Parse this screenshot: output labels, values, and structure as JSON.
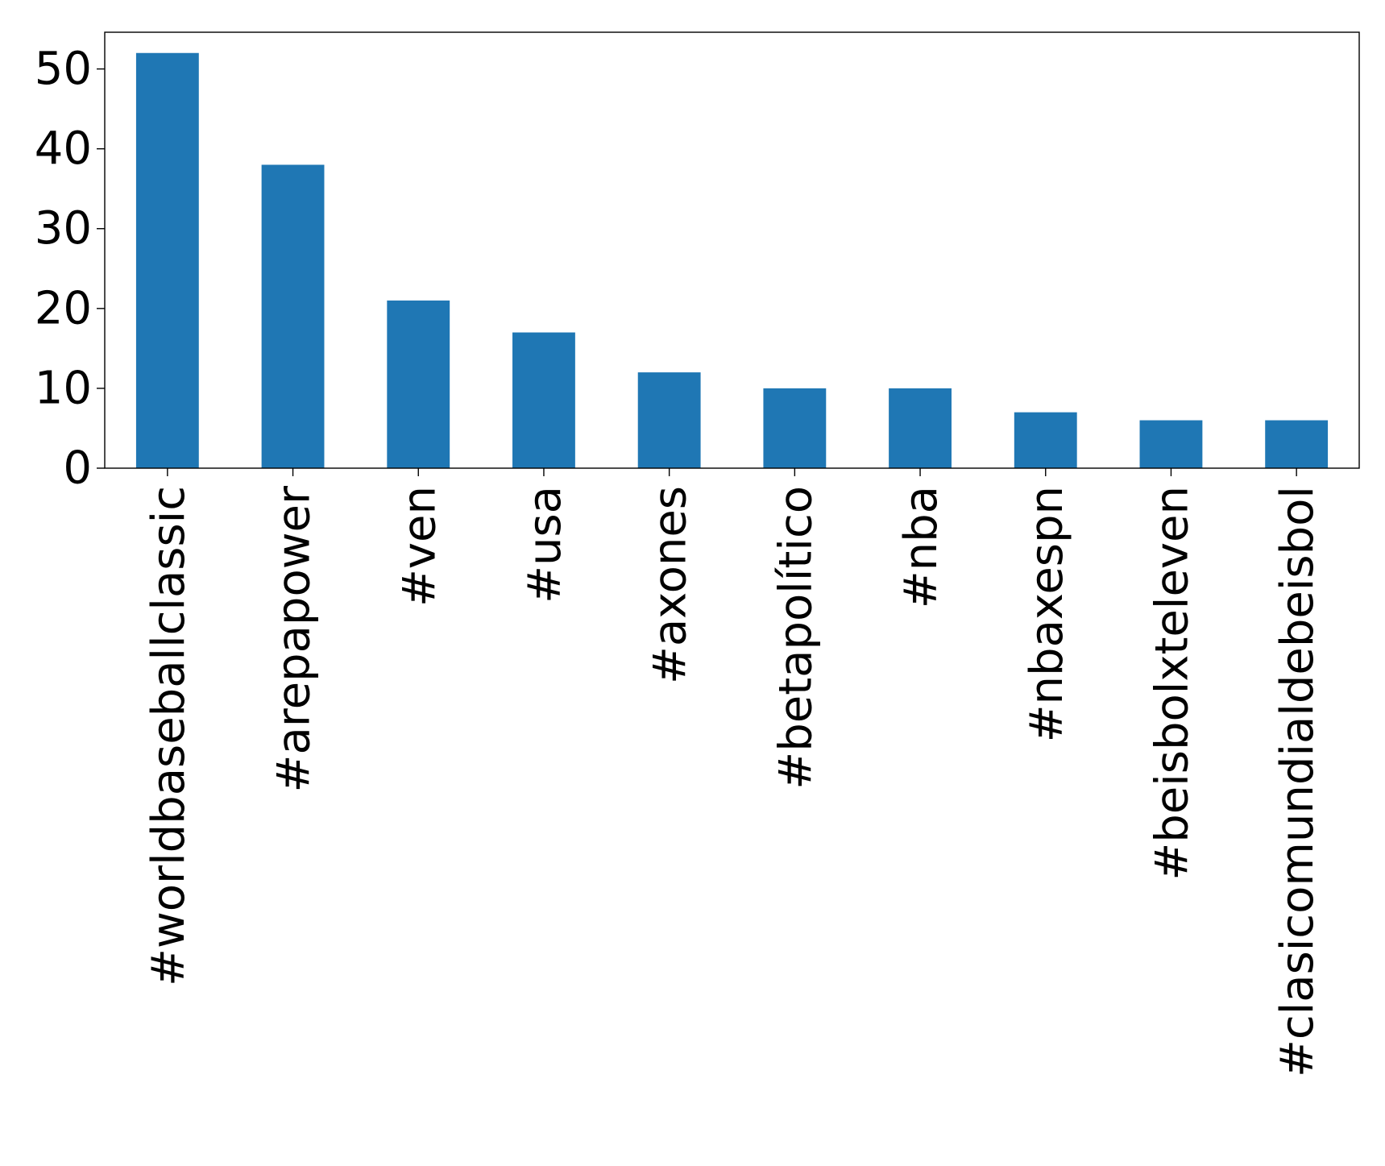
{
  "chart_data": {
    "type": "bar",
    "title": "",
    "xlabel": "",
    "ylabel": "",
    "categories": [
      "#worldbaseballclassic",
      "#arepapower",
      "#ven",
      "#usa",
      "#axones",
      "#betapolítico",
      "#nba",
      "#nbaxespn",
      "#beisbolxteleven",
      "#clasicomundialdebeisbol"
    ],
    "values": [
      52,
      38,
      21,
      17,
      12,
      10,
      10,
      7,
      6,
      6
    ],
    "ylim": [
      0,
      54.6
    ],
    "yticks": [
      0,
      10,
      20,
      30,
      40,
      50
    ],
    "ytick_labels": [
      "0",
      "10",
      "20",
      "30",
      "40",
      "50"
    ],
    "bar_color": "#1f77b4",
    "grid": false,
    "legend": "none"
  }
}
